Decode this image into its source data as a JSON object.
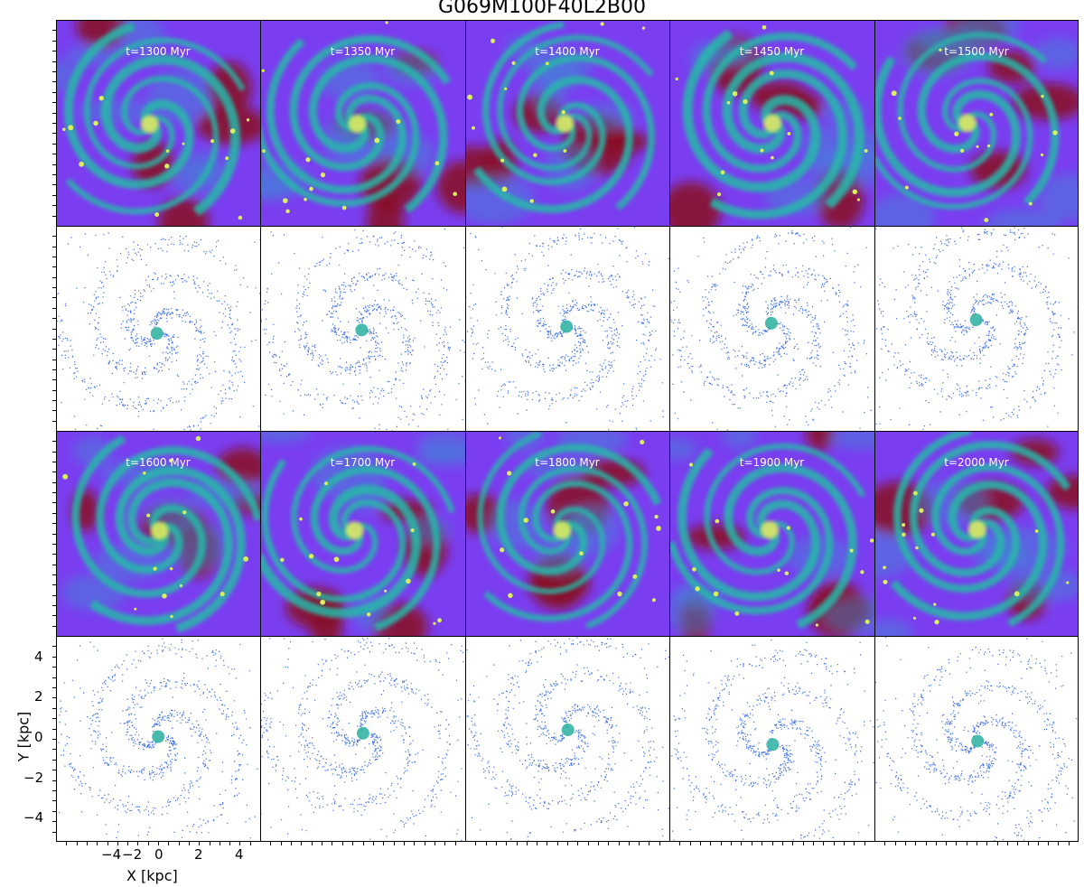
{
  "figure": {
    "title": "G069M100F40L2B00",
    "xlabel": "X [kpc]",
    "ylabel": "Y [kpc]",
    "xticks": [
      "−4",
      "−2",
      "0",
      "2",
      "4"
    ],
    "yticks": [
      "4",
      "2",
      "0",
      "−2",
      "−4"
    ],
    "axis_range_kpc": [
      -5,
      5
    ],
    "times": [
      "t=1300 Myr",
      "t=1350 Myr",
      "t=1400 Myr",
      "t=1450 Myr",
      "t=1500 Myr",
      "t=1600 Myr",
      "t=1700 Myr",
      "t=1800 Myr",
      "t=1900 Myr",
      "t=2000 Myr"
    ],
    "row_types": [
      "gas density map",
      "star particles",
      "gas density map",
      "star particles"
    ],
    "colors": {
      "gas_background": "#7a3ef0",
      "gas_void": "#8a1020",
      "gas_arm": "#27b8a8",
      "gas_core": "#d8f060",
      "star_particle": "#3a6ee8",
      "star_dense": "#2ab0a0"
    }
  }
}
